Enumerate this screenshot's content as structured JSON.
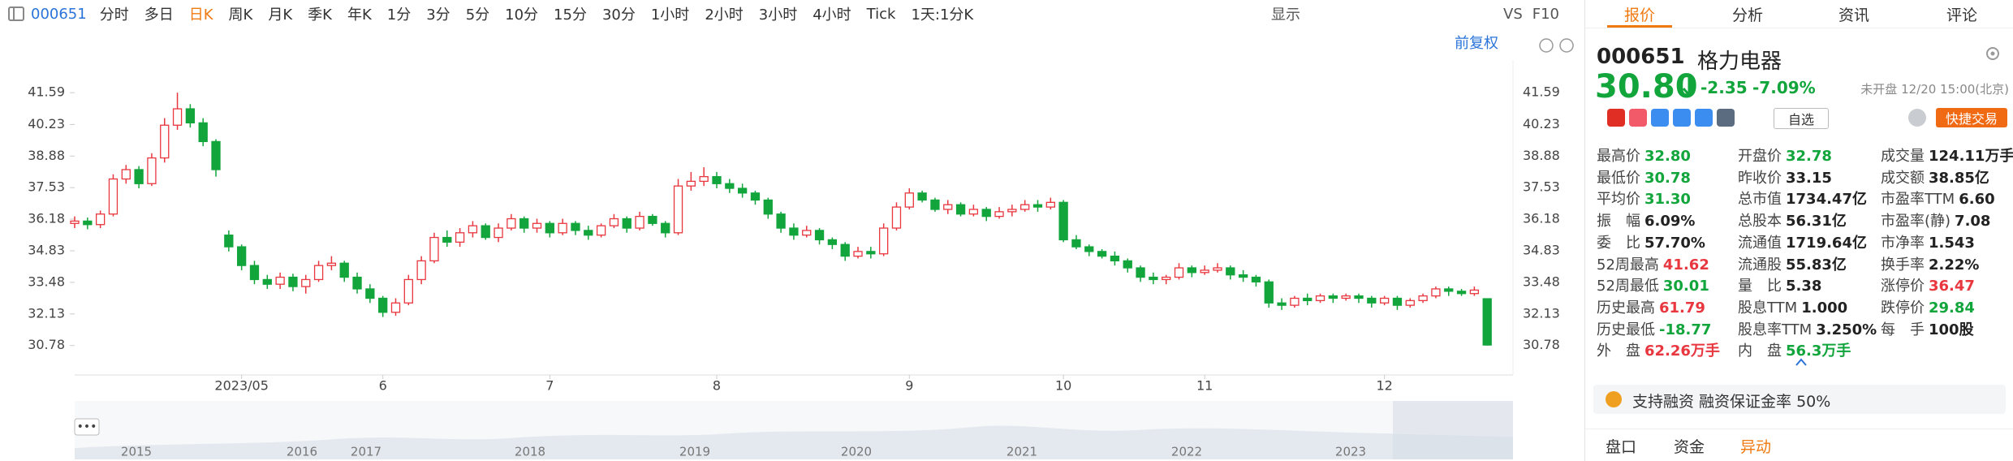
{
  "toolbar": {
    "code": "000651",
    "periods": [
      "分时",
      "多日",
      "日K",
      "周K",
      "月K",
      "季K",
      "年K",
      "1分",
      "3分",
      "5分",
      "10分",
      "15分",
      "30分",
      "1小时",
      "2小时",
      "3小时",
      "4小时",
      "Tick",
      "1天:1分K"
    ],
    "active": 2,
    "right": [
      "显示",
      "VS",
      "F10"
    ],
    "adjust": "前复权"
  },
  "chart_data": {
    "type": "candlestick",
    "categories": [
      null,
      null,
      null,
      null,
      null,
      null,
      null,
      null,
      null,
      null,
      null,
      null,
      null,
      "2023/05",
      null,
      null,
      null,
      null,
      null,
      null,
      null,
      null,
      null,
      null,
      "6",
      null,
      null,
      null,
      null,
      null,
      null,
      null,
      null,
      null,
      null,
      null,
      null,
      "7",
      null,
      null,
      null,
      null,
      null,
      null,
      null,
      null,
      null,
      null,
      null,
      null,
      "8",
      null,
      null,
      null,
      null,
      null,
      null,
      null,
      null,
      null,
      null,
      null,
      null,
      null,
      null,
      "9",
      null,
      null,
      null,
      null,
      null,
      null,
      null,
      null,
      null,
      null,
      null,
      "10",
      null,
      null,
      null,
      null,
      null,
      null,
      null,
      null,
      null,
      null,
      "11",
      null,
      null,
      null,
      null,
      null,
      null,
      null,
      null,
      null,
      null,
      null,
      null,
      null,
      "12",
      null,
      null,
      null,
      null,
      null,
      null,
      null,
      null
    ],
    "open": [
      36.0,
      36.1,
      35.95,
      36.4,
      37.9,
      38.3,
      37.7,
      38.8,
      40.2,
      40.9,
      40.3,
      39.5,
      35.5,
      35.0,
      34.2,
      33.6,
      33.4,
      33.7,
      33.3,
      33.6,
      34.2,
      34.3,
      33.7,
      33.2,
      32.8,
      32.2,
      32.6,
      33.6,
      34.4,
      35.4,
      35.2,
      35.6,
      35.9,
      35.4,
      35.8,
      36.2,
      35.8,
      36.0,
      35.6,
      36.0,
      35.7,
      35.5,
      35.9,
      36.2,
      35.8,
      36.3,
      36.0,
      35.6,
      37.6,
      37.8,
      38.0,
      37.7,
      37.5,
      37.3,
      37.0,
      36.4,
      35.8,
      35.5,
      35.7,
      35.3,
      35.1,
      34.6,
      34.8,
      34.7,
      35.8,
      36.7,
      37.3,
      37.0,
      36.6,
      36.8,
      36.4,
      36.6,
      36.3,
      36.5,
      36.6,
      36.8,
      36.7,
      36.9,
      35.3,
      35.0,
      34.8,
      34.6,
      34.4,
      34.1,
      33.7,
      33.6,
      33.7,
      34.1,
      33.9,
      34.0,
      34.1,
      33.8,
      33.7,
      33.5,
      32.6,
      32.5,
      32.8,
      32.7,
      32.9,
      32.8,
      32.9,
      32.8,
      32.6,
      32.8,
      32.5,
      32.7,
      32.9,
      33.2,
      33.1,
      33.0,
      32.78
    ],
    "high": [
      36.3,
      36.25,
      36.55,
      38.1,
      38.5,
      38.45,
      39.0,
      40.5,
      41.59,
      41.1,
      40.5,
      39.6,
      35.7,
      35.1,
      34.4,
      33.8,
      33.9,
      33.85,
      33.8,
      34.4,
      34.6,
      34.4,
      33.9,
      33.4,
      32.9,
      32.8,
      33.8,
      34.6,
      35.6,
      35.7,
      35.8,
      36.1,
      36.0,
      36.0,
      36.4,
      36.3,
      36.2,
      36.1,
      36.2,
      36.1,
      35.9,
      36.0,
      36.4,
      36.3,
      36.5,
      36.4,
      36.1,
      37.9,
      38.2,
      38.4,
      38.2,
      37.9,
      37.7,
      37.4,
      37.1,
      36.5,
      36.0,
      35.9,
      35.8,
      35.4,
      35.2,
      35.0,
      35.0,
      36.0,
      36.9,
      37.5,
      37.4,
      37.1,
      37.0,
      36.9,
      36.8,
      36.7,
      36.7,
      36.8,
      37.0,
      37.0,
      37.1,
      37.0,
      35.5,
      35.1,
      34.9,
      34.8,
      34.5,
      34.2,
      33.9,
      33.8,
      34.3,
      34.2,
      34.2,
      34.3,
      34.2,
      34.0,
      33.8,
      33.6,
      32.8,
      32.9,
      33.0,
      33.0,
      33.0,
      33.0,
      33.0,
      32.9,
      32.9,
      32.9,
      32.8,
      33.0,
      33.3,
      33.3,
      33.2,
      33.3,
      32.8
    ],
    "low": [
      35.8,
      35.75,
      35.8,
      36.3,
      37.7,
      37.5,
      37.6,
      38.6,
      40.0,
      40.1,
      39.3,
      38.0,
      34.8,
      34.0,
      33.4,
      33.2,
      33.2,
      33.1,
      33.0,
      33.5,
      34.0,
      33.5,
      33.0,
      32.6,
      32.0,
      32.05,
      32.5,
      33.4,
      34.3,
      35.0,
      35.0,
      35.4,
      35.3,
      35.2,
      35.7,
      35.6,
      35.6,
      35.4,
      35.5,
      35.5,
      35.3,
      35.4,
      35.8,
      35.6,
      35.7,
      35.9,
      35.4,
      35.5,
      37.4,
      37.6,
      37.5,
      37.3,
      37.1,
      36.8,
      36.2,
      35.6,
      35.3,
      35.4,
      35.1,
      34.9,
      34.4,
      34.5,
      34.5,
      34.6,
      35.7,
      36.6,
      36.9,
      36.5,
      36.4,
      36.3,
      36.3,
      36.1,
      36.2,
      36.3,
      36.5,
      36.5,
      36.6,
      35.2,
      34.9,
      34.6,
      34.5,
      34.2,
      33.9,
      33.5,
      33.4,
      33.4,
      33.6,
      33.7,
      33.8,
      33.9,
      33.6,
      33.5,
      33.3,
      32.4,
      32.3,
      32.4,
      32.5,
      32.6,
      32.6,
      32.7,
      32.6,
      32.4,
      32.5,
      32.3,
      32.4,
      32.6,
      32.8,
      32.9,
      32.9,
      32.9,
      30.78
    ],
    "close": [
      36.1,
      35.95,
      36.4,
      37.9,
      38.3,
      37.7,
      38.8,
      40.2,
      40.9,
      40.3,
      39.5,
      38.3,
      35.0,
      34.2,
      33.6,
      33.4,
      33.7,
      33.3,
      33.6,
      34.2,
      34.3,
      33.7,
      33.2,
      32.8,
      32.2,
      32.6,
      33.6,
      34.4,
      35.4,
      35.2,
      35.6,
      35.9,
      35.4,
      35.8,
      36.2,
      35.8,
      36.0,
      35.6,
      36.0,
      35.7,
      35.5,
      35.9,
      36.2,
      35.8,
      36.3,
      36.0,
      35.6,
      37.6,
      37.8,
      38.0,
      37.7,
      37.5,
      37.3,
      37.0,
      36.4,
      35.8,
      35.5,
      35.7,
      35.3,
      35.1,
      34.6,
      34.8,
      34.7,
      35.8,
      36.7,
      37.3,
      37.0,
      36.6,
      36.8,
      36.4,
      36.6,
      36.3,
      36.5,
      36.6,
      36.8,
      36.7,
      36.9,
      35.3,
      35.0,
      34.8,
      34.6,
      34.4,
      34.1,
      33.7,
      33.6,
      33.7,
      34.1,
      33.9,
      34.0,
      34.1,
      33.8,
      33.7,
      33.5,
      32.6,
      32.5,
      32.8,
      32.7,
      32.9,
      32.8,
      32.9,
      32.8,
      32.6,
      32.8,
      32.5,
      32.7,
      32.9,
      33.2,
      33.1,
      33.0,
      33.15,
      30.8
    ],
    "up_color": "#e8373f",
    "down_color": "#12a53c",
    "ylim": [
      29.52,
      42.36
    ],
    "yticks": [
      41.59,
      40.23,
      38.88,
      37.53,
      36.18,
      34.83,
      33.48,
      32.13,
      30.78
    ]
  },
  "navigator": {
    "years": [
      "2015",
      "2016",
      "2017",
      "2018",
      "2019",
      "2020",
      "2021",
      "2022",
      "2023"
    ]
  },
  "quote": {
    "tabs": [
      "报价",
      "分析",
      "资讯",
      "评论"
    ],
    "active_tab": 0,
    "code": "000651",
    "name": "格力电器",
    "price": "30.80",
    "change": "-2.35",
    "pct": "-7.09%",
    "status": "未开盘 12/20 15:00(北京)",
    "watch": "自选",
    "trade": "快捷交易",
    "stats": [
      [
        {
          "label": "最高价",
          "value": "32.80",
          "color": "#12a53c"
        },
        {
          "label": "开盘价",
          "value": "32.78",
          "color": "#12a53c"
        },
        {
          "label": "成交量",
          "value": "124.11万手"
        }
      ],
      [
        {
          "label": "最低价",
          "value": "30.78",
          "color": "#12a53c"
        },
        {
          "label": "昨收价",
          "value": "33.15"
        },
        {
          "label": "成交额",
          "value": "38.85亿"
        }
      ],
      [
        {
          "label": "平均价",
          "value": "31.30",
          "color": "#12a53c"
        },
        {
          "label": "总市值",
          "value": "1734.47亿"
        },
        {
          "label": "市盈率TTM",
          "value": "6.60"
        }
      ],
      [
        {
          "label": "振　幅",
          "value": "6.09%"
        },
        {
          "label": "总股本",
          "value": "56.31亿"
        },
        {
          "label": "市盈率(静)",
          "value": "7.08"
        }
      ],
      [
        {
          "label": "委　比",
          "value": "57.70%"
        },
        {
          "label": "流通值",
          "value": "1719.64亿"
        },
        {
          "label": "市净率",
          "value": "1.543"
        }
      ],
      [
        {
          "label": "52周最高",
          "value": "41.62",
          "color": "#e8373f"
        },
        {
          "label": "流通股",
          "value": "55.83亿"
        },
        {
          "label": "换手率",
          "value": "2.22%"
        }
      ],
      [
        {
          "label": "52周最低",
          "value": "30.01",
          "color": "#12a53c"
        },
        {
          "label": "量　比",
          "value": "5.38"
        },
        {
          "label": "涨停价",
          "value": "36.47",
          "color": "#e8373f"
        }
      ],
      [
        {
          "label": "历史最高",
          "value": "61.79",
          "color": "#e8373f"
        },
        {
          "label": "股息TTM",
          "value": "1.000"
        },
        {
          "label": "跌停价",
          "value": "29.84",
          "color": "#12a53c"
        }
      ],
      [
        {
          "label": "历史最低",
          "value": "-18.77",
          "color": "#12a53c"
        },
        {
          "label": "股息率TTM",
          "value": "3.250%"
        },
        {
          "label": "每　手",
          "value": "100股"
        }
      ],
      [
        {
          "label": "外　盘",
          "value": "62.26万手",
          "color": "#e8373f"
        },
        {
          "label": "内　盘",
          "value": "56.3万手",
          "color": "#12a53c"
        }
      ]
    ],
    "notice": "支持融资 融资保证金率 50%",
    "bottom_tabs": [
      "盘口",
      "资金",
      "异动"
    ],
    "active_bottom": 2
  }
}
